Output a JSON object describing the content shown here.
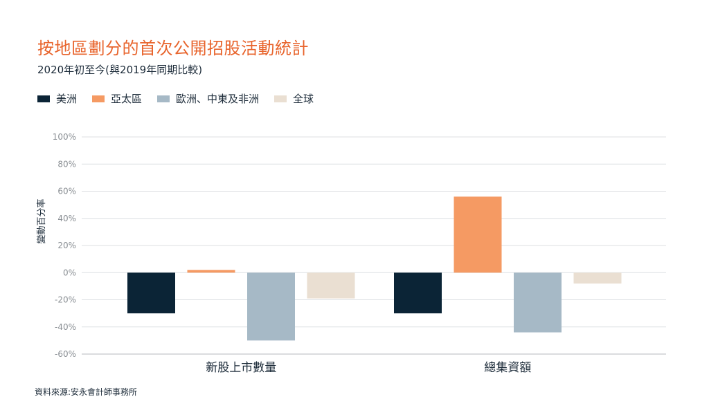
{
  "chart_data": {
    "type": "bar",
    "title": "按地區劃分的首次公開招股活動統計",
    "subtitle": "2020年初至今(與2019年同期比較)",
    "ylabel": "變動百分率",
    "xlabel": "",
    "categories": [
      "新股上市數量",
      "總集資額"
    ],
    "series": [
      {
        "name": "美洲",
        "color": "#0b2436",
        "values": [
          -30,
          -30
        ]
      },
      {
        "name": "亞太區",
        "color": "#f59a63",
        "values": [
          2,
          56
        ]
      },
      {
        "name": "歐洲、中東及非洲",
        "color": "#a6b9c6",
        "values": [
          -50,
          -44
        ]
      },
      {
        "name": "全球",
        "color": "#eadfd2",
        "values": [
          -19,
          -8
        ]
      }
    ],
    "ylim": [
      -60,
      100
    ],
    "yticks": [
      "100%",
      "80%",
      "60%",
      "40%",
      "20%",
      "0%",
      "-20%",
      "-40%",
      "-60%"
    ],
    "ytick_values": [
      100,
      80,
      60,
      40,
      20,
      0,
      -20,
      -40,
      -60
    ],
    "grid": true,
    "legend_position": "top-left",
    "source": "資料來源:安永會計師事務所"
  }
}
